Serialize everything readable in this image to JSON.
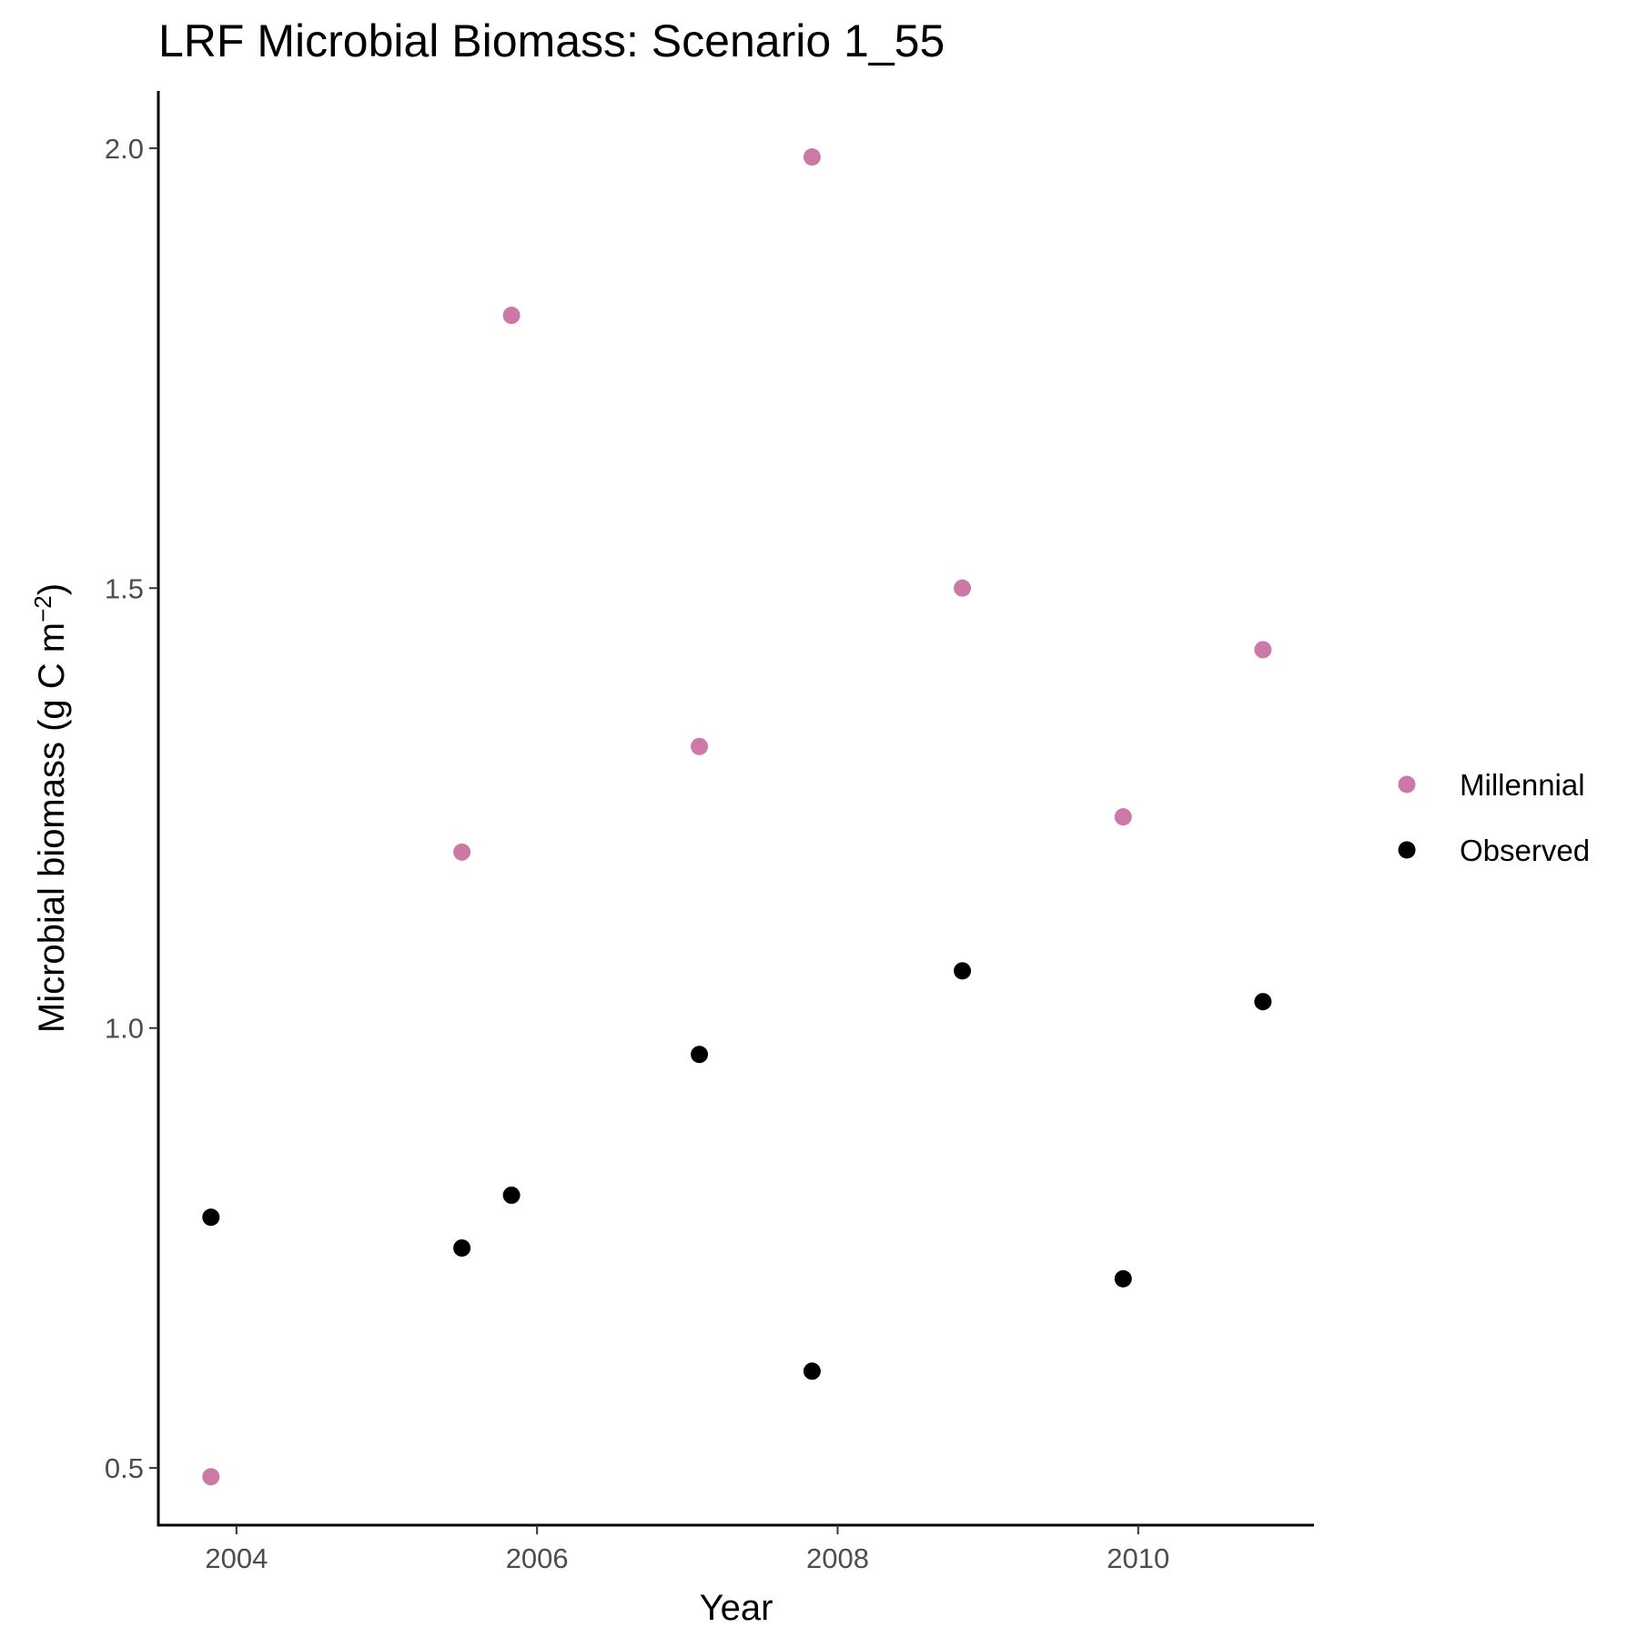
{
  "chart_data": {
    "type": "scatter",
    "title": "LRF Microbial Biomass: Scenario  1_55",
    "xlabel": "Year",
    "ylabel": "Microbial biomass (g C m",
    "ylabel_superscript": "−2",
    "ylabel_suffix": ")",
    "xlim": [
      2003.48,
      2011.17
    ],
    "ylim": [
      0.435,
      2.065
    ],
    "x_ticks": [
      2004,
      2006,
      2008,
      2010
    ],
    "y_ticks": [
      0.5,
      1.0,
      1.5,
      2.0
    ],
    "y_tick_labels": [
      "0.5",
      "1.0",
      "1.5",
      "2.0"
    ],
    "legend_position": "right",
    "grid": false,
    "series": [
      {
        "name": "Millennial",
        "color": "#CC79A7",
        "points": [
          {
            "x": 2003.83,
            "y": 0.49
          },
          {
            "x": 2005.5,
            "y": 1.2
          },
          {
            "x": 2005.83,
            "y": 1.81
          },
          {
            "x": 2007.08,
            "y": 1.32
          },
          {
            "x": 2007.83,
            "y": 1.99
          },
          {
            "x": 2008.83,
            "y": 1.5
          },
          {
            "x": 2009.9,
            "y": 1.24
          },
          {
            "x": 2010.83,
            "y": 1.43
          }
        ]
      },
      {
        "name": "Observed",
        "color": "#000000",
        "points": [
          {
            "x": 2003.83,
            "y": 0.785
          },
          {
            "x": 2005.5,
            "y": 0.75
          },
          {
            "x": 2005.83,
            "y": 0.81
          },
          {
            "x": 2007.08,
            "y": 0.97
          },
          {
            "x": 2007.83,
            "y": 0.61
          },
          {
            "x": 2008.83,
            "y": 1.065
          },
          {
            "x": 2009.9,
            "y": 0.715
          },
          {
            "x": 2010.83,
            "y": 1.03
          }
        ]
      }
    ]
  }
}
